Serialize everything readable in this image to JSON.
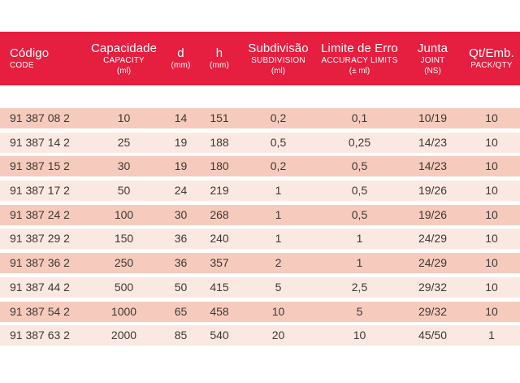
{
  "colors": {
    "header_bg": "#e61e3f",
    "header_text": "#ffffff",
    "row_dark": "#f6cbbd",
    "row_light": "#fce8e2",
    "body_text": "#3d3835",
    "page_bg": "#ffffff"
  },
  "table": {
    "header": {
      "columns": [
        {
          "line1": "Código",
          "line2": "CODE",
          "line3": ""
        },
        {
          "line1": "Capacidade",
          "line2": "CAPACITY",
          "line3": "(ml)"
        },
        {
          "line1": "d",
          "line2": "(mm)",
          "line3": ""
        },
        {
          "line1": "h",
          "line2": "(mm)",
          "line3": ""
        },
        {
          "line1": "Subdivisão",
          "line2": "SUBDIVISION",
          "line3": "(ml)"
        },
        {
          "line1": "Limite de Erro",
          "line2": "ACCURACY LIMITS",
          "line3": "(± ml)"
        },
        {
          "line1": "Junta",
          "line2": "JOINT",
          "line3": "(NS)"
        },
        {
          "line1": "Qt/Emb.",
          "line2": "PACK/QTY",
          "line3": ""
        }
      ]
    },
    "rows": [
      [
        "91 387 08 2",
        "10",
        "14",
        "151",
        "0,2",
        "0,1",
        "10/19",
        "10"
      ],
      [
        "91 387 14 2",
        "25",
        "19",
        "188",
        "0,5",
        "0,25",
        "14/23",
        "10"
      ],
      [
        "91 387 15 2",
        "30",
        "19",
        "180",
        "0,2",
        "0,5",
        "14/23",
        "10"
      ],
      [
        "91 387 17 2",
        "50",
        "24",
        "219",
        "1",
        "0,5",
        "19/26",
        "10"
      ],
      [
        "91 387 24 2",
        "100",
        "30",
        "268",
        "1",
        "0,5",
        "19/26",
        "10"
      ],
      [
        "91 387 29 2",
        "150",
        "36",
        "240",
        "1",
        "1",
        "24/29",
        "10"
      ],
      [
        "91 387 36 2",
        "250",
        "36",
        "357",
        "2",
        "1",
        "24/29",
        "10"
      ],
      [
        "91 387 44 2",
        "500",
        "50",
        "415",
        "5",
        "2,5",
        "29/32",
        "10"
      ],
      [
        "91 387 54 2",
        "1000",
        "65",
        "458",
        "10",
        "5",
        "29/32",
        "10"
      ],
      [
        "91 387 63 2",
        "2000",
        "85",
        "540",
        "20",
        "10",
        "45/50",
        "1"
      ]
    ]
  }
}
